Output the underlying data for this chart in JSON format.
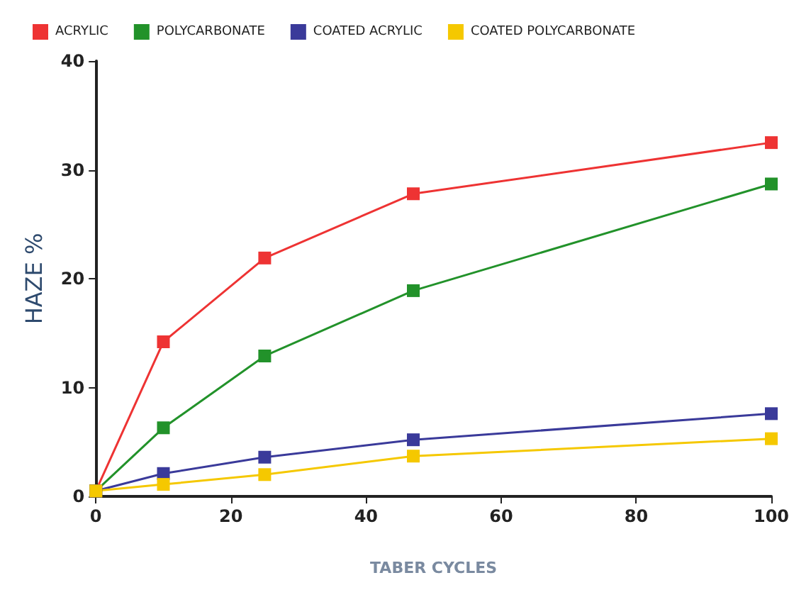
{
  "chart_data": {
    "type": "line",
    "xlabel": "TABER CYCLES",
    "ylabel": "HAZE %",
    "x": [
      0,
      10,
      25,
      47,
      100
    ],
    "series": [
      {
        "name": "ACRYLIC",
        "color": "#ee3333",
        "values": [
          0.5,
          14.2,
          21.9,
          27.8,
          32.5
        ]
      },
      {
        "name": "POLYCARBONATE",
        "color": "#22922a",
        "values": [
          0.5,
          6.3,
          12.9,
          18.9,
          28.7
        ]
      },
      {
        "name": "COATED ACRYLIC",
        "color": "#3a3a9a",
        "values": [
          0.5,
          2.1,
          3.6,
          5.2,
          7.6
        ]
      },
      {
        "name": "COATED POLYCARBONATE",
        "color": "#f5c800",
        "values": [
          0.5,
          1.1,
          2.0,
          3.7,
          5.3
        ]
      }
    ],
    "xlim": [
      0,
      100
    ],
    "xticks": [
      0,
      20,
      40,
      60,
      80,
      100
    ],
    "ylim": [
      0,
      40
    ],
    "yticks": [
      0,
      10,
      20,
      30,
      40
    ],
    "grid": false,
    "legend": "top left",
    "marker": "square",
    "line_style": "solid"
  }
}
